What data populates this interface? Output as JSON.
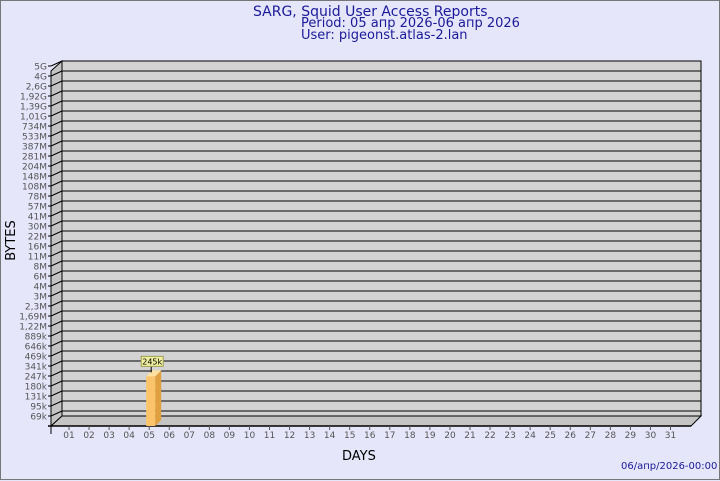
{
  "chart_data": {
    "type": "bar",
    "title": "SARG, Squid User Access Reports",
    "subtitle_period": "Period: 05 апр 2026-06 апр 2026",
    "subtitle_user": "User: pigeonst.atlas-2.lan",
    "xlabel": "DAYS",
    "ylabel": "BYTES",
    "footer": "06/апр/2026-00:00",
    "yscale": "log",
    "grid": true,
    "y_ticks": [
      "5G",
      "4G",
      "2,6G",
      "1,92G",
      "1,39G",
      "1,01G",
      "734M",
      "533M",
      "387M",
      "281M",
      "204M",
      "148M",
      "108M",
      "78M",
      "57M",
      "41M",
      "30M",
      "22M",
      "16M",
      "11M",
      "8M",
      "6M",
      "4M",
      "3M",
      "2,3M",
      "1,69M",
      "1,22M",
      "889k",
      "646k",
      "469k",
      "341k",
      "247k",
      "180k",
      "131k",
      "95k",
      "69k"
    ],
    "categories": [
      "01",
      "02",
      "03",
      "04",
      "05",
      "06",
      "07",
      "08",
      "09",
      "10",
      "11",
      "12",
      "13",
      "14",
      "15",
      "16",
      "17",
      "18",
      "19",
      "20",
      "21",
      "22",
      "23",
      "24",
      "25",
      "26",
      "27",
      "28",
      "29",
      "30",
      "31"
    ],
    "bars": [
      {
        "category": "05",
        "value": 245000,
        "label": "245k"
      }
    ],
    "colors": {
      "background": "#e6e6fa",
      "plot": "#d3d3d3",
      "bar_front": "#fcc46a",
      "bar_side": "#e0a040",
      "text": "#1a1a99",
      "label_box": "#f0f0a0"
    }
  }
}
